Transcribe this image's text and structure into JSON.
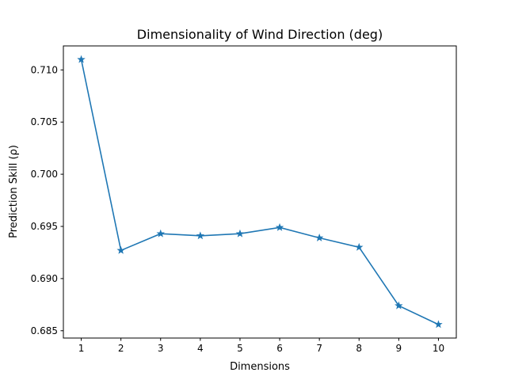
{
  "chart_data": {
    "type": "line",
    "title": "Dimensionality of Wind Direction (deg)",
    "xlabel": "Dimensions",
    "ylabel": "Prediction Skill (ρ)",
    "x": [
      1,
      2,
      3,
      4,
      5,
      6,
      7,
      8,
      9,
      10
    ],
    "series": [
      {
        "values": [
          0.711,
          0.6927,
          0.6943,
          0.6941,
          0.6943,
          0.6949,
          0.6939,
          0.693,
          0.6874,
          0.6856
        ],
        "color": "#1f77b4",
        "marker": "star"
      }
    ],
    "xlim": [
      0.55,
      10.45
    ],
    "ylim": [
      0.6843,
      0.7123
    ],
    "xticks": [
      1,
      2,
      3,
      4,
      5,
      6,
      7,
      8,
      9,
      10
    ],
    "xtick_labels": [
      "1",
      "2",
      "3",
      "4",
      "5",
      "6",
      "7",
      "8",
      "9",
      "10"
    ],
    "yticks": [
      0.685,
      0.69,
      0.695,
      0.7,
      0.705,
      0.71
    ],
    "ytick_labels": [
      "0.685",
      "0.690",
      "0.695",
      "0.700",
      "0.705",
      "0.710"
    ],
    "grid": false,
    "legend": false
  }
}
